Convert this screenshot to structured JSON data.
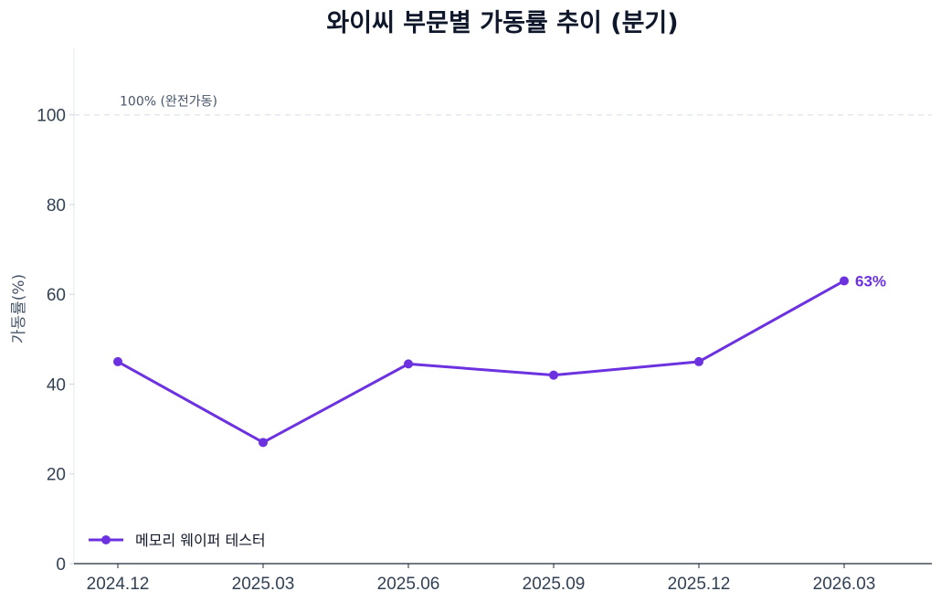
{
  "chart_data": {
    "type": "line",
    "title": "와이씨 부문별 가동률 추이 (분기)",
    "xlabel": "",
    "ylabel": "가동률(%)",
    "categories": [
      "2024.12",
      "2025.03",
      "2025.06",
      "2025.09",
      "2025.12",
      "2026.03"
    ],
    "series": [
      {
        "name": "메모리 웨이퍼 테스터",
        "values": [
          45,
          27,
          44.5,
          42,
          45,
          63
        ],
        "color": "#6d32e0"
      }
    ],
    "ylim": [
      0,
      115
    ],
    "yticks": [
      0,
      20,
      40,
      60,
      80,
      100
    ],
    "reference_line": {
      "value": 100,
      "label": "100% (완전가동)"
    },
    "end_label": "63%",
    "grid": false,
    "legend_position": "lower-left"
  }
}
